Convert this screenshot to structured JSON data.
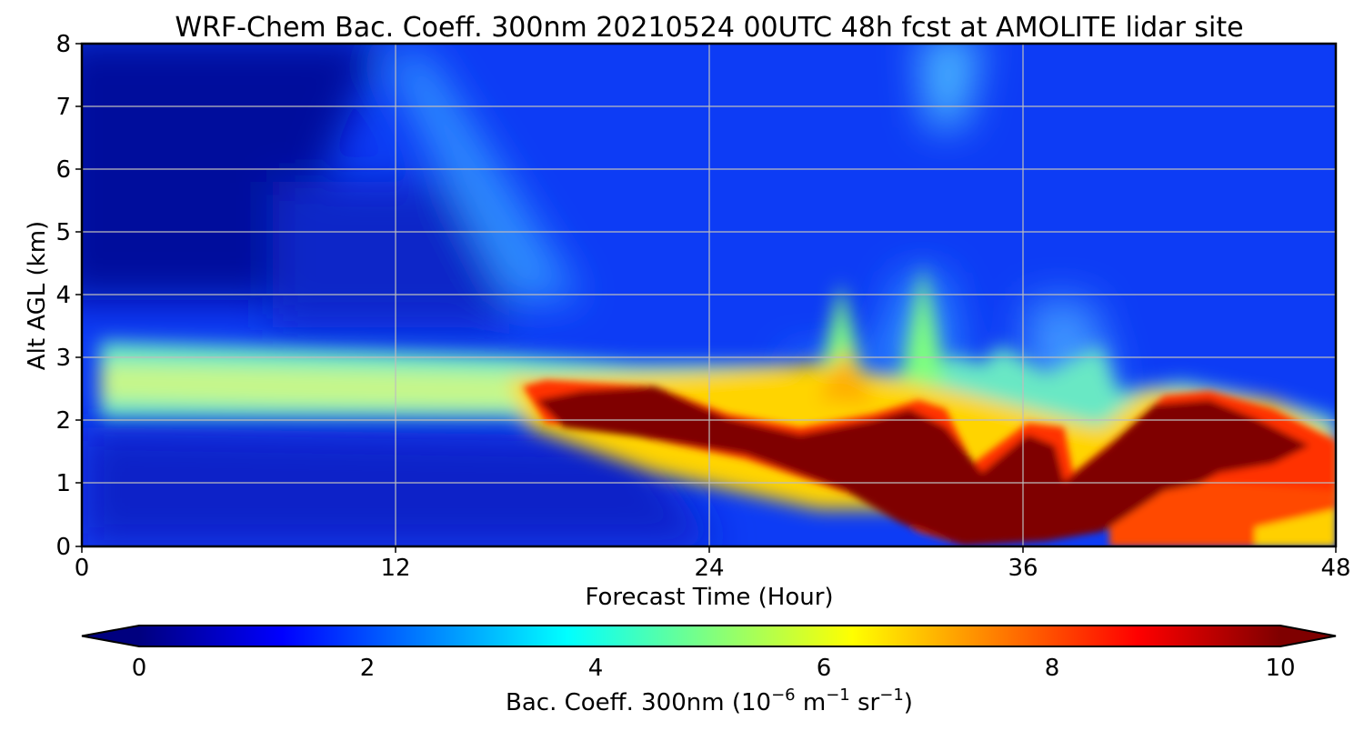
{
  "chart_data": {
    "type": "heatmap",
    "title": "WRF-Chem Bac. Coeff. 300nm  20210524 00UTC 48h fcst at AMOLITE lidar site",
    "xlabel": "Forecast Time (Hour)",
    "ylabel": "Alt AGL (km)",
    "xlim": [
      0,
      48
    ],
    "ylim": [
      0,
      8
    ],
    "x_ticks": [
      "0",
      "12",
      "24",
      "36",
      "48"
    ],
    "y_ticks": [
      "0",
      "1",
      "2",
      "3",
      "4",
      "5",
      "6",
      "7",
      "8"
    ],
    "grid": true,
    "colormap": "jet",
    "colorbar": {
      "label_main": "Bac. Coeff. 300nm  (10",
      "label_exp1": "−6",
      "label_m": " m",
      "label_exp2": "−1",
      "label_sr": " sr",
      "label_exp3": "−1",
      "label_close": ")",
      "range": [
        0,
        10
      ],
      "extend": "both",
      "ticks": [
        "0",
        "2",
        "4",
        "6",
        "8",
        "10"
      ],
      "orientation": "horizontal"
    },
    "features": [
      {
        "t": [
          0,
          17
        ],
        "z": [
          2.1,
          3.0
        ],
        "value": 4.5
      },
      {
        "t": [
          17,
          34
        ],
        "z": [
          0.2,
          2.6
        ],
        "value": 10
      },
      {
        "t": [
          34,
          48
        ],
        "z": [
          0.0,
          2.4
        ],
        "value": 10
      },
      {
        "t": [
          28,
          33
        ],
        "z": [
          2.0,
          4.5
        ],
        "value": 5
      }
    ]
  }
}
